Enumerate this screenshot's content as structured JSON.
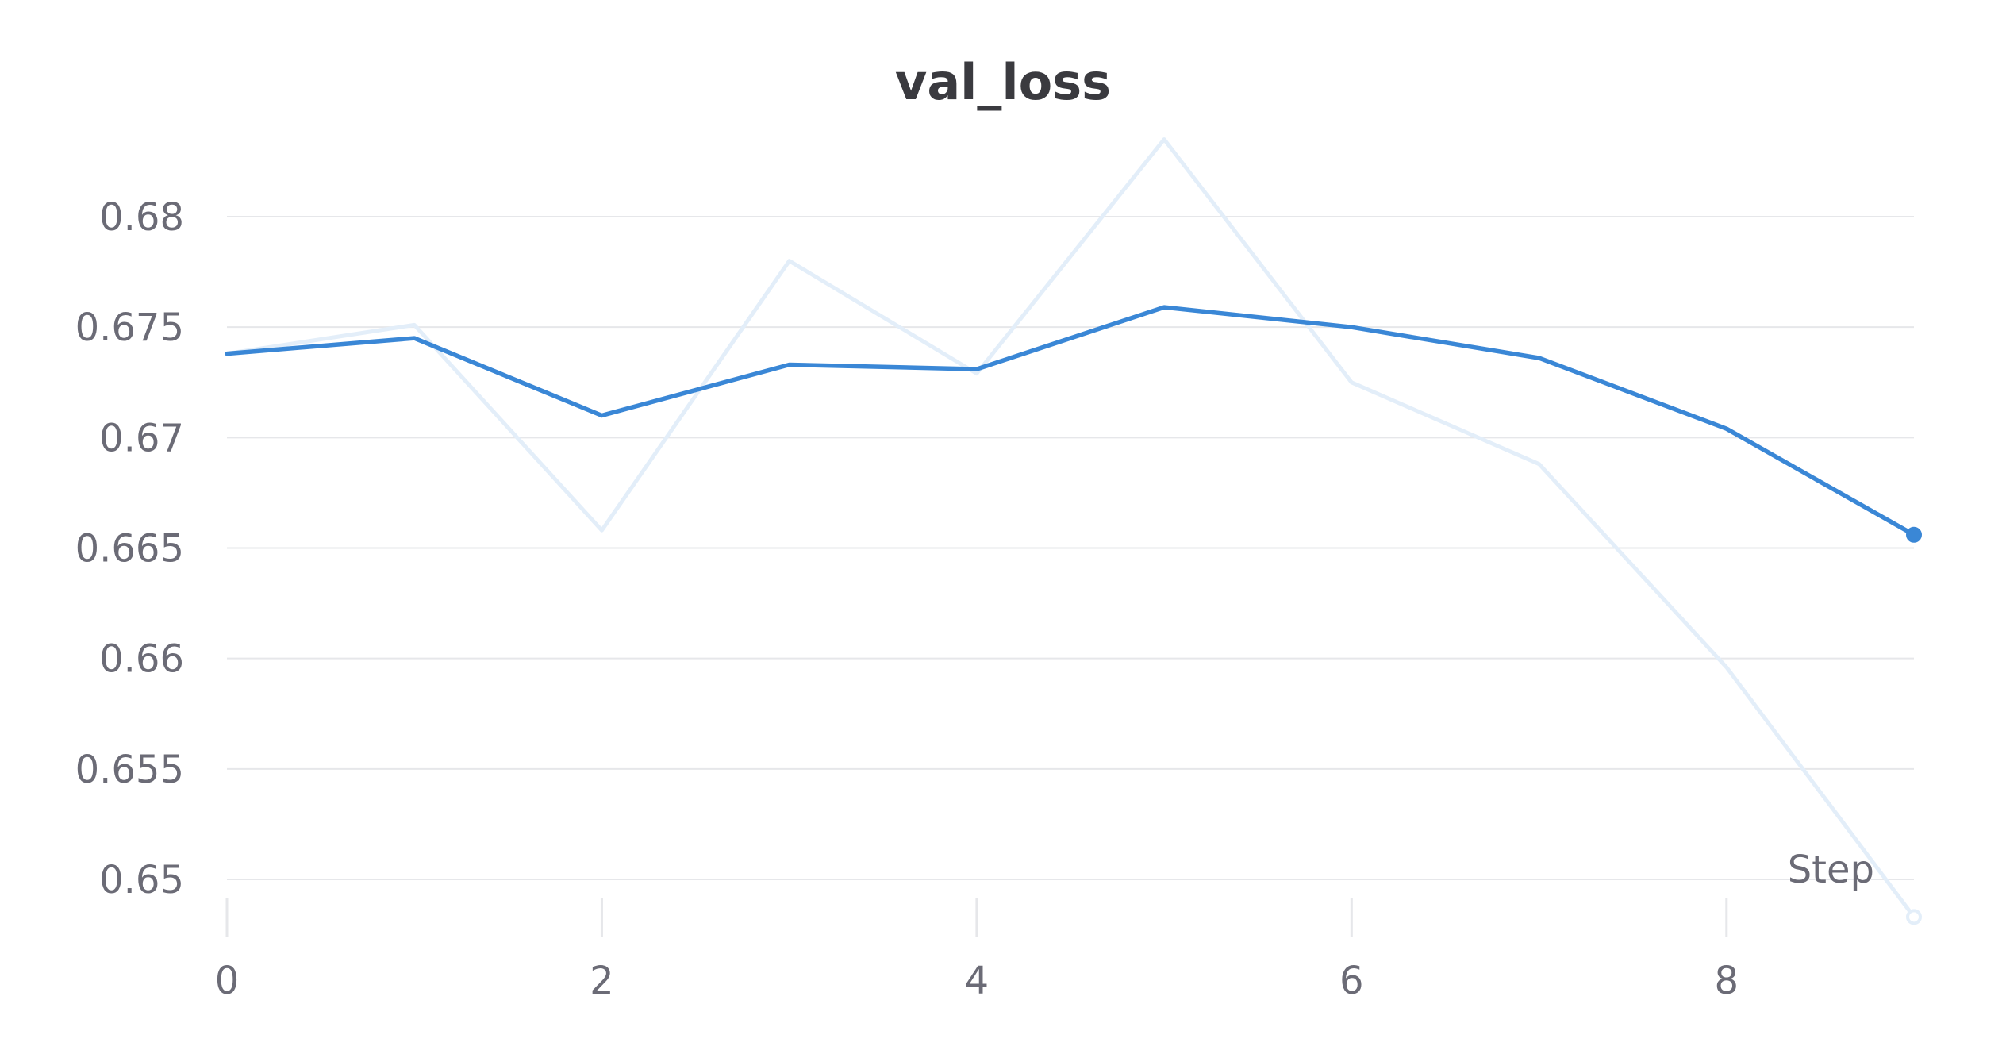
{
  "chart_data": {
    "type": "line",
    "title": "val_loss",
    "xlabel": "Step",
    "ylabel": "",
    "xlim": [
      0,
      9
    ],
    "ylim": [
      0.6482,
      0.684
    ],
    "x_ticks": [
      0,
      2,
      4,
      6,
      8
    ],
    "x_tick_labels": [
      "0",
      "2",
      "4",
      "6",
      "8"
    ],
    "y_ticks": [
      0.65,
      0.655,
      0.66,
      0.665,
      0.67,
      0.675,
      0.68
    ],
    "y_tick_labels": [
      "0.65",
      "0.655",
      "0.66",
      "0.665",
      "0.67",
      "0.675",
      "0.68"
    ],
    "grid": true,
    "legend": "none",
    "series": [
      {
        "style": "raw",
        "color": "#e3eef9",
        "x": [
          0,
          1,
          2,
          3,
          4,
          5,
          6,
          7,
          8,
          9
        ],
        "values": [
          0.6738,
          0.6751,
          0.6658,
          0.678,
          0.6729,
          0.6835,
          0.6725,
          0.6688,
          0.6596,
          0.6483
        ]
      },
      {
        "style": "smoothed",
        "color": "#3a87d6",
        "x": [
          0,
          1,
          2,
          3,
          4,
          5,
          6,
          7,
          8,
          9
        ],
        "values": [
          0.6738,
          0.6745,
          0.671,
          0.6733,
          0.6731,
          0.6759,
          0.675,
          0.6736,
          0.6704,
          0.6656
        ]
      }
    ]
  }
}
